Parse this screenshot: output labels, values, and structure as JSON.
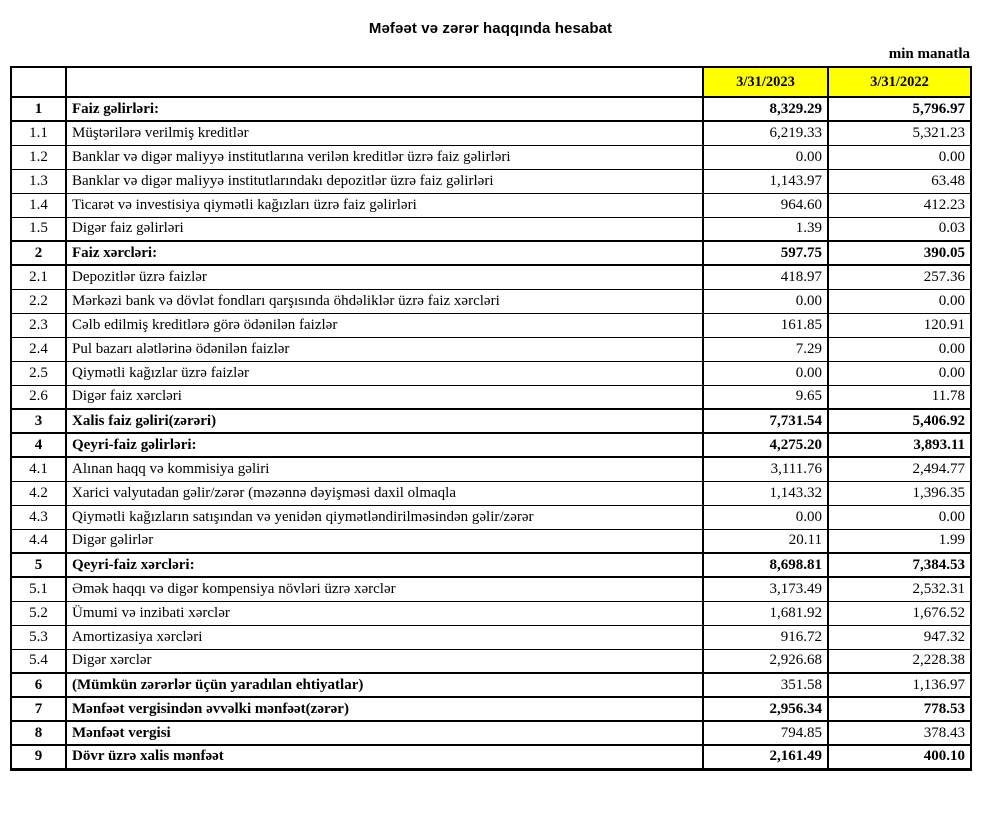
{
  "page": {
    "title": "Məfəət və zərər haqqında hesabat",
    "unit_note": "min manatla"
  },
  "table": {
    "header_fill": "#FFFF00",
    "columns": [
      "3/31/2023",
      "3/31/2022"
    ],
    "rows": [
      {
        "no": "1",
        "label": "Faiz gəlirləri:",
        "v2023": "8,329.29",
        "v2022": "5,796.97",
        "section": true,
        "bold_values": true
      },
      {
        "no": "1.1",
        "label": "Müştərilərə verilmiş kreditlər",
        "v2023": "6,219.33",
        "v2022": "5,321.23",
        "section": false,
        "bold_values": false
      },
      {
        "no": "1.2",
        "label": "Banklar və digər maliyyə institutlarına verilən kreditlər üzrə faiz gəlirləri",
        "v2023": "0.00",
        "v2022": "0.00",
        "section": false,
        "bold_values": false
      },
      {
        "no": "1.3",
        "label": "Banklar və digər maliyyə institutlarındakı depozitlər üzrə faiz gəlirləri",
        "v2023": "1,143.97",
        "v2022": "63.48",
        "section": false,
        "bold_values": false
      },
      {
        "no": "1.4",
        "label": "Ticarət və investisiya qiymətli kağızları üzrə faiz gəlirləri",
        "v2023": "964.60",
        "v2022": "412.23",
        "section": false,
        "bold_values": false
      },
      {
        "no": "1.5",
        "label": "Digər faiz gəlirləri",
        "v2023": "1.39",
        "v2022": "0.03",
        "section": false,
        "bold_values": false
      },
      {
        "no": "2",
        "label": "Faiz xərcləri:",
        "v2023": "597.75",
        "v2022": "390.05",
        "section": true,
        "bold_values": true
      },
      {
        "no": "2.1",
        "label": "Depozitlər üzrə faizlər",
        "v2023": "418.97",
        "v2022": "257.36",
        "section": false,
        "bold_values": false
      },
      {
        "no": "2.2",
        "label": "Mərkəzi bank və dövlət fondları qarşısında öhdəliklər üzrə faiz xərcləri",
        "v2023": "0.00",
        "v2022": "0.00",
        "section": false,
        "bold_values": false
      },
      {
        "no": "2.3",
        "label": "Cəlb edilmiş kreditlərə görə ödənilən faizlər",
        "v2023": "161.85",
        "v2022": "120.91",
        "section": false,
        "bold_values": false
      },
      {
        "no": "2.4",
        "label": "Pul bazarı alətlərinə ödənilən faizlər",
        "v2023": "7.29",
        "v2022": "0.00",
        "section": false,
        "bold_values": false
      },
      {
        "no": "2.5",
        "label": "Qiymətli kağızlar üzrə faizlər",
        "v2023": "0.00",
        "v2022": "0.00",
        "section": false,
        "bold_values": false
      },
      {
        "no": "2.6",
        "label": "Digər faiz xərcləri",
        "v2023": "9.65",
        "v2022": "11.78",
        "section": false,
        "bold_values": false
      },
      {
        "no": "3",
        "label": "Xalis faiz gəliri(zərəri)",
        "v2023": "7,731.54",
        "v2022": "5,406.92",
        "section": true,
        "bold_values": true
      },
      {
        "no": "4",
        "label": "Qeyri-faiz gəlirləri:",
        "v2023": "4,275.20",
        "v2022": "3,893.11",
        "section": true,
        "bold_values": true
      },
      {
        "no": "4.1",
        "label": "Alınan haqq və kommisiya gəliri",
        "v2023": "3,111.76",
        "v2022": "2,494.77",
        "section": false,
        "bold_values": false
      },
      {
        "no": "4.2",
        "label": "Xarici valyutadan gəlir/zərər (məzənnə dəyişməsi daxil olmaqla",
        "v2023": "1,143.32",
        "v2022": "1,396.35",
        "section": false,
        "bold_values": false
      },
      {
        "no": "4.3",
        "label": "Qiymətli kağızların satışından və yenidən qiymətləndirilməsindən gəlir/zərər",
        "v2023": "0.00",
        "v2022": "0.00",
        "section": false,
        "bold_values": false
      },
      {
        "no": "4.4",
        "label": "Digər gəlirlər",
        "v2023": "20.11",
        "v2022": "1.99",
        "section": false,
        "bold_values": false
      },
      {
        "no": "5",
        "label": "Qeyri-faiz xərcləri:",
        "v2023": "8,698.81",
        "v2022": "7,384.53",
        "section": true,
        "bold_values": true
      },
      {
        "no": "5.1",
        "label": "Əmək haqqı və digər kompensiya növləri üzrə xərclər",
        "v2023": "3,173.49",
        "v2022": "2,532.31",
        "section": false,
        "bold_values": false
      },
      {
        "no": "5.2",
        "label": "Ümumi və inzibati xərclər",
        "v2023": "1,681.92",
        "v2022": "1,676.52",
        "section": false,
        "bold_values": false
      },
      {
        "no": "5.3",
        "label": "Amortizasiya xərcləri",
        "v2023": "916.72",
        "v2022": "947.32",
        "section": false,
        "bold_values": false
      },
      {
        "no": "5.4",
        "label": "Digər xərclər",
        "v2023": "2,926.68",
        "v2022": "2,228.38",
        "section": false,
        "bold_values": false
      },
      {
        "no": "6",
        "label": "(Mümkün zərərlər üçün yaradılan ehtiyatlar)",
        "v2023": "351.58",
        "v2022": "1,136.97",
        "section": true,
        "bold_values": false
      },
      {
        "no": "7",
        "label": "Mənfəət vergisindən əvvəlki mənfəət(zərər)",
        "v2023": "2,956.34",
        "v2022": "778.53",
        "section": true,
        "bold_values": true
      },
      {
        "no": "8",
        "label": "Mənfəət vergisi",
        "v2023": "794.85",
        "v2022": "378.43",
        "section": true,
        "bold_values": false
      },
      {
        "no": "9",
        "label": "Dövr üzrə xalis mənfəət",
        "v2023": "2,161.49",
        "v2022": "400.10",
        "section": true,
        "bold_values": true
      }
    ]
  }
}
